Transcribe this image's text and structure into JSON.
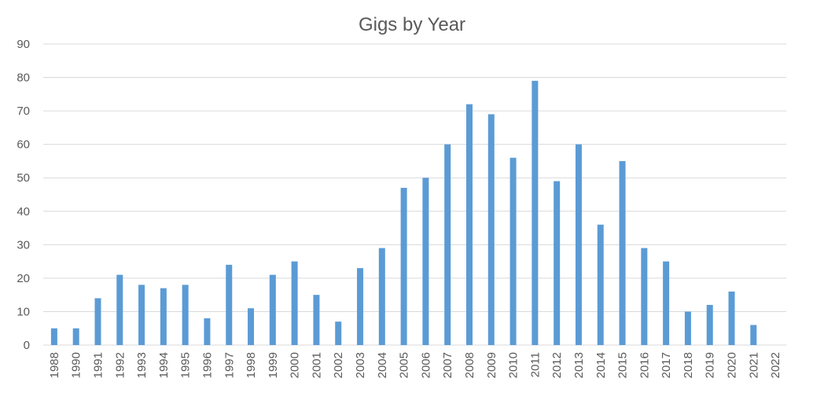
{
  "chart_data": {
    "type": "bar",
    "title": "Gigs by Year",
    "xlabel": "",
    "ylabel": "",
    "ylim": [
      0,
      90
    ],
    "yticks": [
      "0",
      "10",
      "20",
      "30",
      "40",
      "50",
      "60",
      "70",
      "80",
      "90"
    ],
    "grid": true,
    "categories": [
      "1988",
      "1990",
      "1991",
      "1992",
      "1993",
      "1994",
      "1995",
      "1996",
      "1997",
      "1998",
      "1999",
      "2000",
      "2001",
      "2002",
      "2003",
      "2004",
      "2005",
      "2006",
      "2007",
      "2008",
      "2009",
      "2010",
      "2011",
      "2012",
      "2013",
      "2014",
      "2015",
      "2016",
      "2017",
      "2018",
      "2019",
      "2020",
      "2021",
      "2022"
    ],
    "values": [
      5,
      5,
      14,
      21,
      18,
      17,
      18,
      8,
      24,
      11,
      21,
      25,
      15,
      7,
      23,
      29,
      47,
      50,
      60,
      72,
      69,
      56,
      79,
      49,
      60,
      36,
      55,
      29,
      25,
      10,
      12,
      16,
      6,
      0
    ],
    "colors": {
      "bar": "#5b9bd5",
      "grid": "#d9d9d9",
      "text": "#595959"
    }
  }
}
